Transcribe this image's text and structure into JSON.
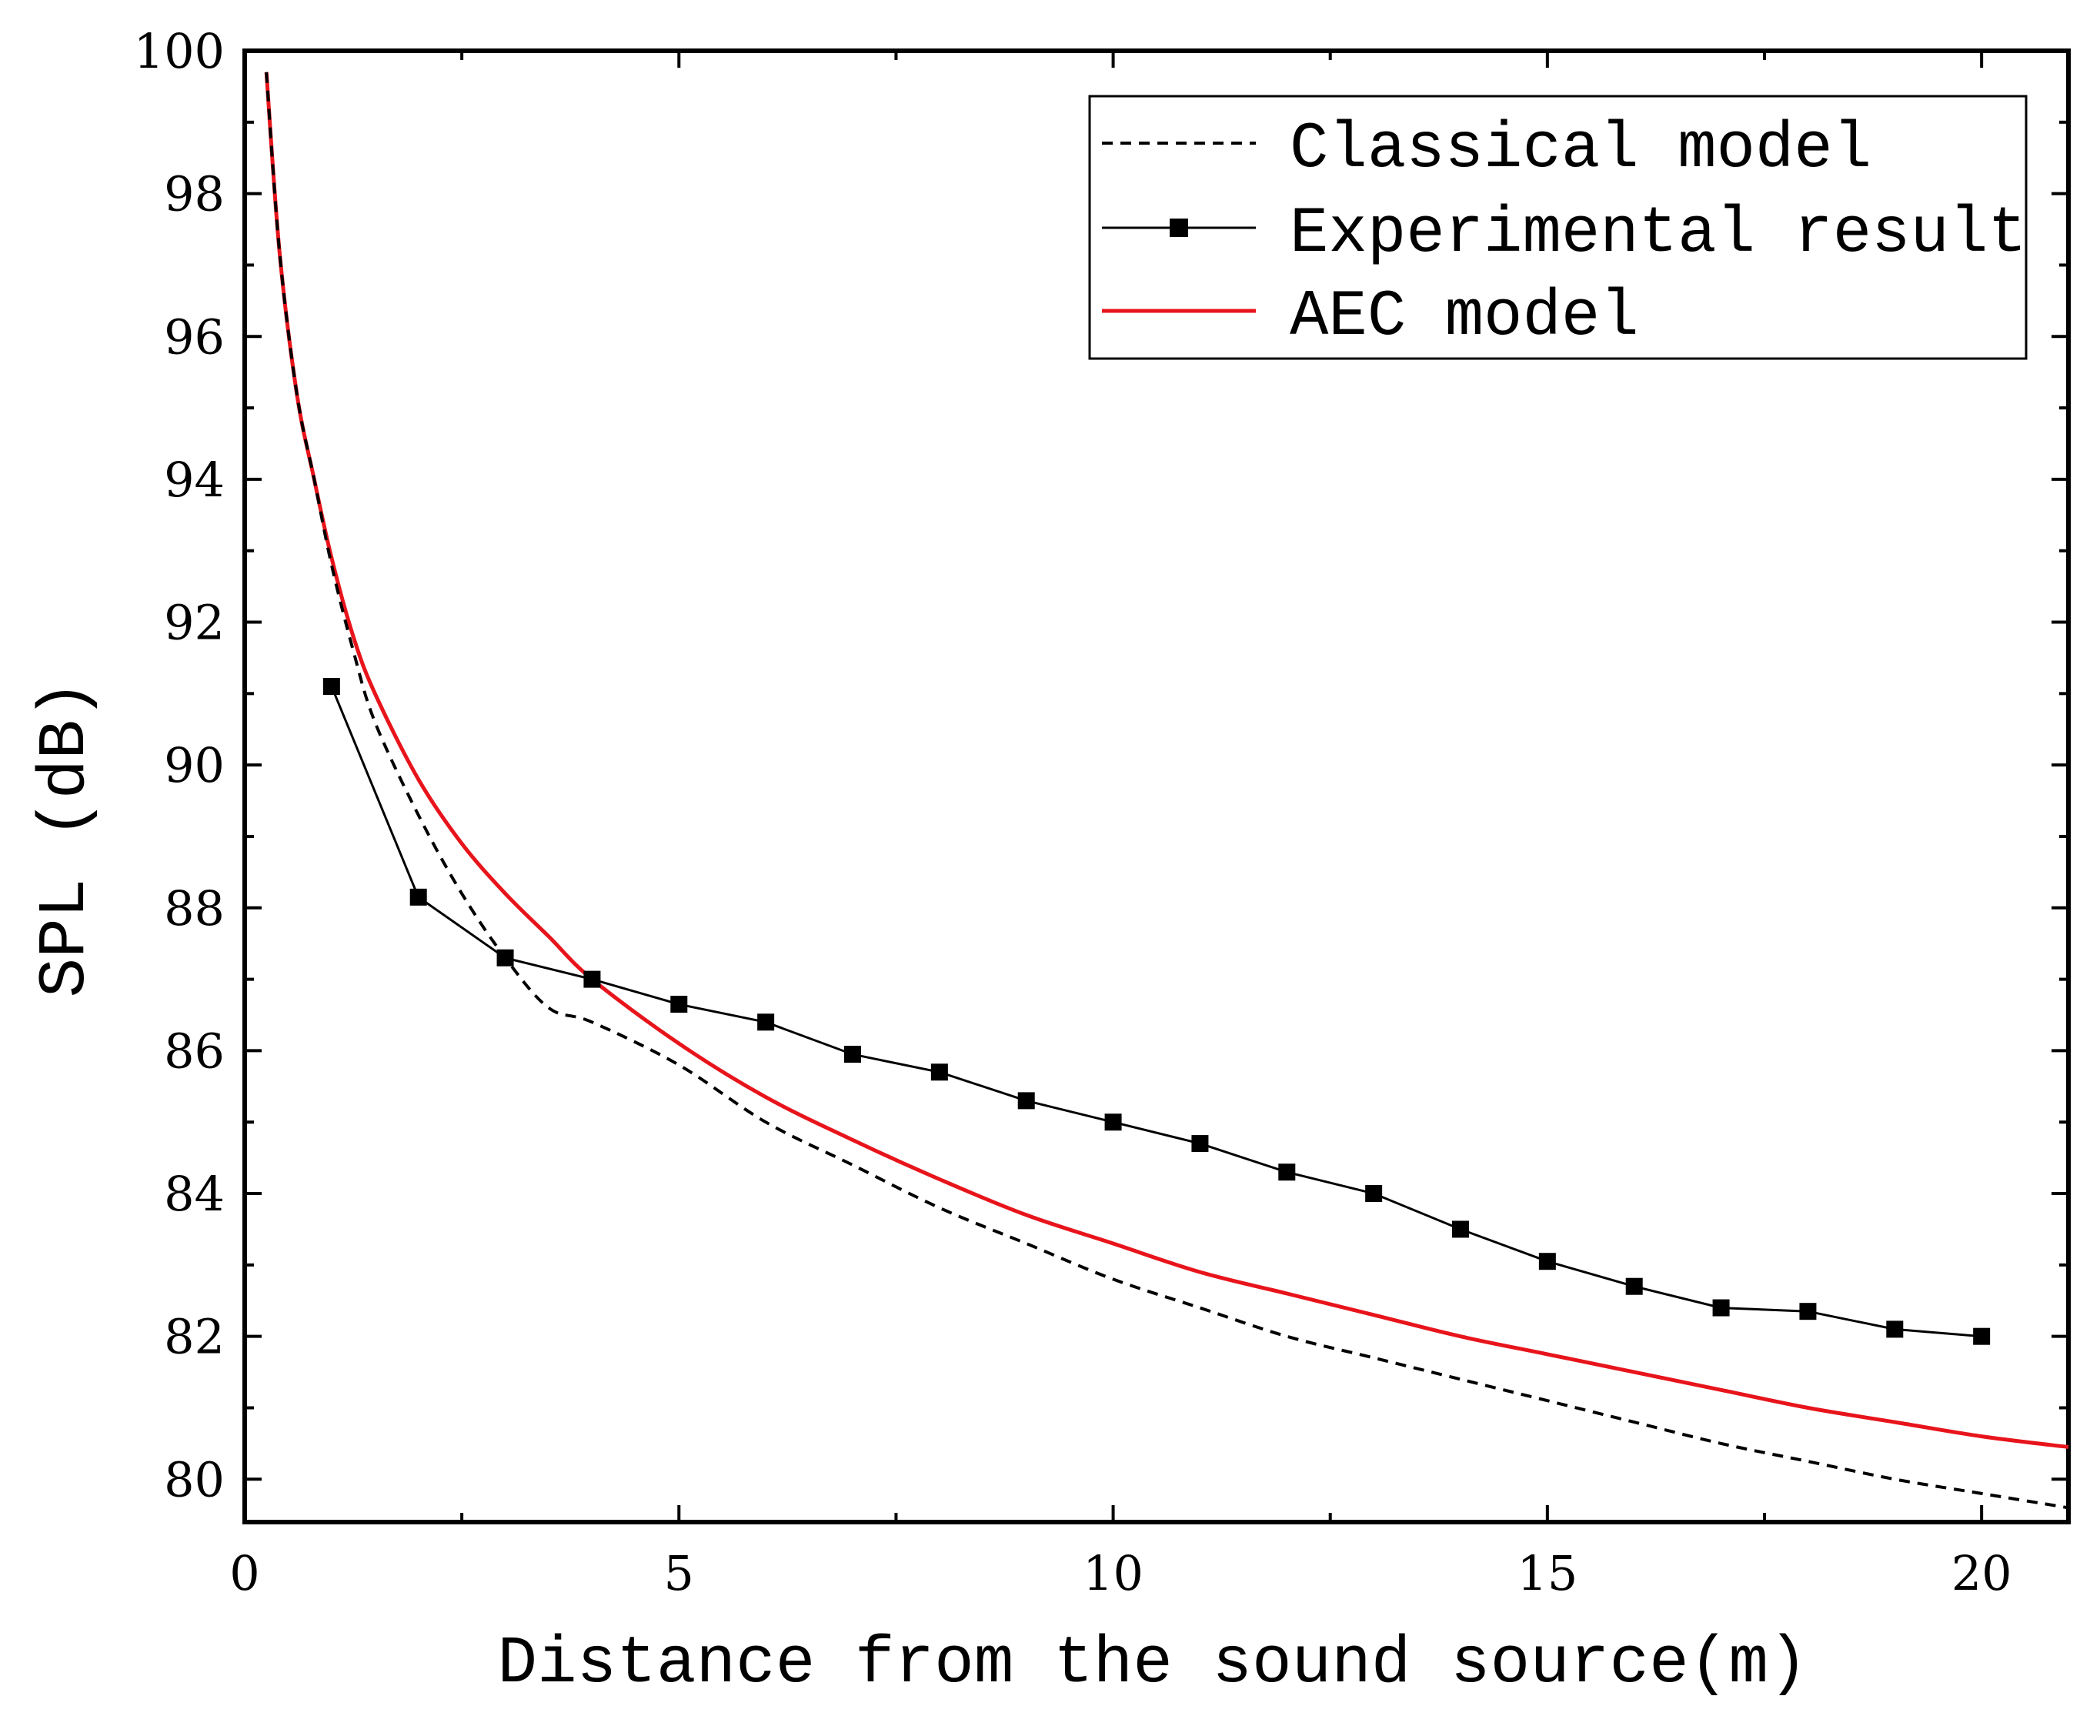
{
  "chart_data": {
    "type": "line",
    "title": "",
    "xlabel": "Distance from the sound source(m)",
    "ylabel": "SPL (dB)",
    "xlim": [
      0,
      21
    ],
    "ylim": [
      79.4,
      100
    ],
    "xticks": [
      0,
      5,
      10,
      15,
      20
    ],
    "xtick_labels": [
      "0",
      "5",
      "10",
      "15",
      "20"
    ],
    "yticks": [
      80,
      82,
      84,
      86,
      88,
      90,
      92,
      94,
      96,
      98,
      100
    ],
    "ytick_labels": [
      "80",
      "82",
      "84",
      "86",
      "88",
      "90",
      "92",
      "94",
      "96",
      "98",
      "100"
    ],
    "grid": false,
    "legend_position": "top-right",
    "series": [
      {
        "name": "Classical model",
        "style": "dashed",
        "color": "#000000",
        "x": [
          0.25,
          0.4,
          0.6,
          0.8,
          1,
          1.25,
          1.5,
          2,
          2.5,
          3,
          3.5,
          4,
          5,
          6,
          7,
          8,
          9,
          10,
          11,
          12,
          13,
          14,
          15,
          16,
          17,
          18,
          19,
          20,
          21
        ],
        "y": [
          99.7,
          97.2,
          95.2,
          94.0,
          92.8,
          91.6,
          90.6,
          89.3,
          88.2,
          87.3,
          86.6,
          86.4,
          85.8,
          85.0,
          84.4,
          83.8,
          83.3,
          82.8,
          82.4,
          82.0,
          81.7,
          81.4,
          81.1,
          80.8,
          80.5,
          80.25,
          80.0,
          79.8,
          79.6
        ]
      },
      {
        "name": "Experimental result",
        "style": "line-square",
        "color": "#000000",
        "x": [
          1,
          2,
          3,
          4,
          5,
          6,
          7,
          8,
          9,
          10,
          11,
          12,
          13,
          14,
          15,
          16,
          17,
          18,
          19,
          20
        ],
        "y": [
          91.1,
          88.15,
          87.3,
          87.0,
          86.65,
          86.4,
          85.95,
          85.7,
          85.3,
          85.0,
          84.7,
          84.3,
          84.0,
          83.5,
          83.05,
          82.7,
          82.4,
          82.35,
          82.1,
          82.0
        ]
      },
      {
        "name": "AEC model",
        "style": "solid",
        "color": "#e8141b",
        "x": [
          0.25,
          0.4,
          0.6,
          0.8,
          1,
          1.25,
          1.5,
          2,
          2.5,
          3,
          3.5,
          4,
          5,
          6,
          7,
          8,
          9,
          10,
          11,
          12,
          13,
          14,
          15,
          16,
          17,
          18,
          19,
          20,
          21
        ],
        "y": [
          99.7,
          97.2,
          95.2,
          94.0,
          92.9,
          91.8,
          91.0,
          89.8,
          88.9,
          88.2,
          87.6,
          87.0,
          86.1,
          85.35,
          84.75,
          84.2,
          83.7,
          83.3,
          82.9,
          82.6,
          82.3,
          82.0,
          81.75,
          81.5,
          81.25,
          81.0,
          80.8,
          80.6,
          80.45
        ]
      }
    ]
  }
}
